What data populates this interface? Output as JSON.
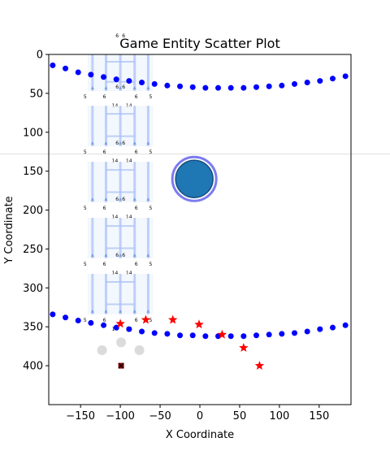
{
  "chart_data": {
    "type": "scatter",
    "title": "Game Entity Scatter Plot",
    "xlabel": "X Coordinate",
    "ylabel": "Y Coordinate",
    "xlim": [
      -190,
      190
    ],
    "ylim": [
      0,
      450
    ],
    "y_inverted": true,
    "xticks": [
      -150,
      -100,
      -50,
      0,
      50,
      100,
      150
    ],
    "yticks": [
      0,
      50,
      100,
      150,
      200,
      250,
      300,
      350,
      400
    ],
    "xtick_labels": [
      "−150",
      "−100",
      "−50",
      "0",
      "50",
      "100",
      "150"
    ],
    "ytick_labels": [
      "0",
      "50",
      "100",
      "150",
      "200",
      "250",
      "300",
      "350",
      "400"
    ],
    "grid": false,
    "reference_line_y": 128,
    "colors": {
      "blue_dots": "#0000ff",
      "red_stars": "#ff0000",
      "big_circle_fill": "#1f77b4",
      "big_circle_edge": "#7b7bf0",
      "grey_circles": "#cccccc",
      "dark_marker": "#8b0000",
      "ladder": "#a9c0f5"
    },
    "series": [
      {
        "marker": "circle",
        "color": "#0000ff",
        "points": [
          [
            -185,
            14
          ],
          [
            -169,
            18
          ],
          [
            -153,
            23
          ],
          [
            -137,
            26
          ],
          [
            -121,
            29
          ],
          [
            -105,
            32
          ],
          [
            -89,
            34
          ],
          [
            -73,
            36
          ],
          [
            -57,
            38
          ],
          [
            -41,
            40
          ],
          [
            -25,
            41
          ],
          [
            -9,
            42
          ],
          [
            7,
            43
          ],
          [
            23,
            43
          ],
          [
            39,
            43
          ],
          [
            55,
            43
          ],
          [
            71,
            42
          ],
          [
            87,
            41
          ],
          [
            103,
            40
          ],
          [
            119,
            38
          ],
          [
            135,
            36
          ],
          [
            151,
            34
          ],
          [
            167,
            31
          ],
          [
            183,
            28
          ]
        ]
      },
      {
        "marker": "circle",
        "color": "#0000ff",
        "points": [
          [
            -185,
            334
          ],
          [
            -169,
            338
          ],
          [
            -153,
            342
          ],
          [
            -137,
            345
          ],
          [
            -121,
            348
          ],
          [
            -105,
            351
          ],
          [
            -89,
            353
          ],
          [
            -73,
            356
          ],
          [
            -57,
            358
          ],
          [
            -41,
            359
          ],
          [
            -25,
            361
          ],
          [
            -9,
            361
          ],
          [
            7,
            362
          ],
          [
            23,
            362
          ],
          [
            39,
            362
          ],
          [
            55,
            362
          ],
          [
            71,
            361
          ],
          [
            87,
            360
          ],
          [
            103,
            359
          ],
          [
            119,
            358
          ],
          [
            135,
            356
          ],
          [
            151,
            353
          ],
          [
            167,
            351
          ],
          [
            183,
            348
          ]
        ]
      },
      {
        "marker": "star",
        "color": "#ff0000",
        "points": [
          [
            -100,
            346
          ],
          [
            -68,
            341
          ],
          [
            -34,
            341
          ],
          [
            -1,
            347
          ],
          [
            28,
            360
          ],
          [
            55,
            377
          ],
          [
            75,
            400
          ]
        ]
      },
      {
        "marker": "circle-large",
        "color": "#1f77b4",
        "points": [
          [
            -7,
            160
          ]
        ]
      },
      {
        "marker": "circle-grey",
        "color": "#cccccc",
        "points": [
          [
            -123,
            380
          ],
          [
            -99,
            370
          ],
          [
            -76,
            380
          ]
        ]
      },
      {
        "marker": "x",
        "color": "#8b0000",
        "points": [
          [
            -99,
            400
          ]
        ]
      }
    ],
    "ladder_segments": [
      {
        "top": 0,
        "bottom": 47
      },
      {
        "top": 66,
        "bottom": 118
      },
      {
        "top": 138,
        "bottom": 190
      },
      {
        "top": 210,
        "bottom": 262
      },
      {
        "top": 282,
        "bottom": 334
      }
    ],
    "ladder_x": [
      -135,
      -118,
      -100,
      -82,
      -65
    ],
    "ladder_numbers": {
      "top_row": [
        "6",
        "6"
      ],
      "upper_row": [
        "5",
        "6",
        "6",
        "5"
      ],
      "lower_row": [
        "14",
        "14"
      ]
    }
  }
}
